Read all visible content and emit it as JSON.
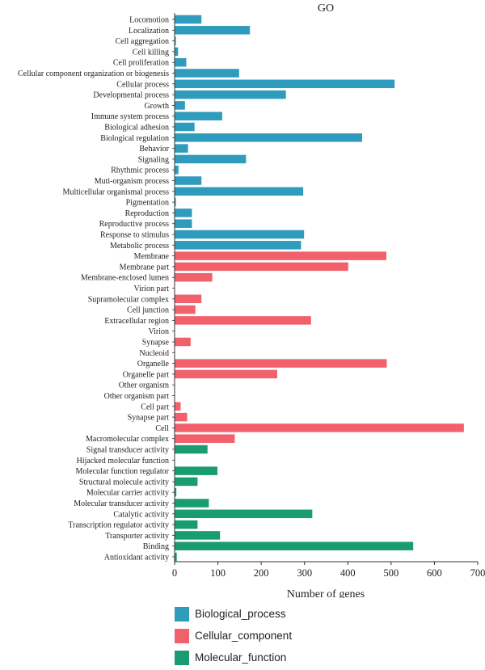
{
  "chart_data": {
    "type": "bar",
    "orientation": "horizontal",
    "title": "GO",
    "xlabel": "Number of genes",
    "ylabel": "",
    "xlim": [
      0,
      700
    ],
    "xticks": [
      0,
      100,
      200,
      300,
      400,
      500,
      600,
      700
    ],
    "grid": false,
    "legend_placement": "bottom-left",
    "colors": {
      "Biological_process": "#2f9bbd",
      "Cellular_component": "#f0616c",
      "Molecular_function": "#1a9c72"
    },
    "legend": [
      "Biological_process",
      "Cellular_component",
      "Molecular_function"
    ],
    "categories": [
      {
        "label": "Locomotion",
        "value": 62,
        "group": "Biological_process"
      },
      {
        "label": "Localization",
        "value": 174,
        "group": "Biological_process"
      },
      {
        "label": "Cell aggregation",
        "value": 3,
        "group": "Biological_process"
      },
      {
        "label": "Cell killing",
        "value": 8,
        "group": "Biological_process"
      },
      {
        "label": "Cell proliferation",
        "value": 27,
        "group": "Biological_process"
      },
      {
        "label": "Cellular component organization or biogenesis",
        "value": 149,
        "group": "Biological_process"
      },
      {
        "label": "Cellular process",
        "value": 508,
        "group": "Biological_process"
      },
      {
        "label": "Developmental process",
        "value": 257,
        "group": "Biological_process"
      },
      {
        "label": "Growth",
        "value": 24,
        "group": "Biological_process"
      },
      {
        "label": "Immune system process",
        "value": 110,
        "group": "Biological_process"
      },
      {
        "label": "Biological adhesion",
        "value": 46,
        "group": "Biological_process"
      },
      {
        "label": "Biological regulation",
        "value": 433,
        "group": "Biological_process"
      },
      {
        "label": "Behavior",
        "value": 31,
        "group": "Biological_process"
      },
      {
        "label": "Signaling",
        "value": 165,
        "group": "Biological_process"
      },
      {
        "label": "Rhythmic process",
        "value": 9,
        "group": "Biological_process"
      },
      {
        "label": "Muti-organism process",
        "value": 62,
        "group": "Biological_process"
      },
      {
        "label": "Multicellular organismal process",
        "value": 297,
        "group": "Biological_process"
      },
      {
        "label": "Pigmentation",
        "value": 3,
        "group": "Biological_process"
      },
      {
        "label": "Reproduction",
        "value": 40,
        "group": "Biological_process"
      },
      {
        "label": "Reproductive process",
        "value": 40,
        "group": "Biological_process"
      },
      {
        "label": "Response to stimulus",
        "value": 299,
        "group": "Biological_process"
      },
      {
        "label": "Metabolic process",
        "value": 292,
        "group": "Biological_process"
      },
      {
        "label": "Membrane",
        "value": 489,
        "group": "Cellular_component"
      },
      {
        "label": "Membrane part",
        "value": 401,
        "group": "Cellular_component"
      },
      {
        "label": "Membrane-enclosed lumen",
        "value": 87,
        "group": "Cellular_component"
      },
      {
        "label": "Virion part",
        "value": 0,
        "group": "Cellular_component"
      },
      {
        "label": "Supramolecular complex",
        "value": 62,
        "group": "Cellular_component"
      },
      {
        "label": "Cell junction",
        "value": 48,
        "group": "Cellular_component"
      },
      {
        "label": "Extracellular region",
        "value": 315,
        "group": "Cellular_component"
      },
      {
        "label": "Virion",
        "value": 0,
        "group": "Cellular_component"
      },
      {
        "label": "Synapse",
        "value": 37,
        "group": "Cellular_component"
      },
      {
        "label": "Nucleoid",
        "value": 0,
        "group": "Cellular_component"
      },
      {
        "label": "Organelle",
        "value": 490,
        "group": "Cellular_component"
      },
      {
        "label": "Organelle part",
        "value": 237,
        "group": "Cellular_component"
      },
      {
        "label": "Other organism",
        "value": 0,
        "group": "Cellular_component"
      },
      {
        "label": "Other organism part",
        "value": 0,
        "group": "Cellular_component"
      },
      {
        "label": "Cell part",
        "value": 14,
        "group": "Cellular_component"
      },
      {
        "label": "Synapse part",
        "value": 29,
        "group": "Cellular_component"
      },
      {
        "label": "Cell",
        "value": 668,
        "group": "Cellular_component"
      },
      {
        "label": "Macromolecular complex",
        "value": 139,
        "group": "Cellular_component"
      },
      {
        "label": "Signal transducer activity",
        "value": 76,
        "group": "Molecular_function"
      },
      {
        "label": "Hijacked molecular function",
        "value": 0,
        "group": "Molecular_function"
      },
      {
        "label": "Molecular function regulator",
        "value": 99,
        "group": "Molecular_function"
      },
      {
        "label": "Structural molecule activity",
        "value": 53,
        "group": "Molecular_function"
      },
      {
        "label": "Molecular carrier activity",
        "value": 4,
        "group": "Molecular_function"
      },
      {
        "label": "Molecular transducer activity",
        "value": 79,
        "group": "Molecular_function"
      },
      {
        "label": "Catalytic activity",
        "value": 318,
        "group": "Molecular_function"
      },
      {
        "label": "Transcription regulator activity",
        "value": 53,
        "group": "Molecular_function"
      },
      {
        "label": "Transporter activity",
        "value": 105,
        "group": "Molecular_function"
      },
      {
        "label": "Binding",
        "value": 551,
        "group": "Molecular_function"
      },
      {
        "label": "Antioxidant activity",
        "value": 5,
        "group": "Molecular_function"
      }
    ]
  }
}
